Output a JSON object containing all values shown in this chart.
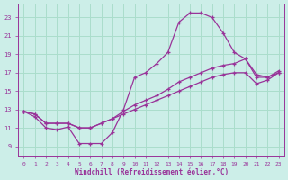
{
  "bg_color": "#cceee8",
  "grid_color": "#aaddcc",
  "line_color": "#993399",
  "xlabel": "Windchill (Refroidissement éolien,°C)",
  "xlabel_color": "#993399",
  "tick_color": "#993399",
  "xlim_min": -0.5,
  "xlim_max": 23.5,
  "ylim_min": 8.0,
  "ylim_max": 24.5,
  "yticks": [
    9,
    11,
    13,
    15,
    17,
    19,
    21,
    23
  ],
  "xticks": [
    0,
    1,
    2,
    3,
    4,
    5,
    6,
    7,
    8,
    9,
    10,
    11,
    12,
    13,
    14,
    15,
    16,
    17,
    18,
    19,
    20,
    21,
    22,
    23
  ],
  "line1_x": [
    0,
    1,
    2,
    3,
    4,
    5,
    6,
    7,
    8,
    9,
    10,
    11,
    12,
    13,
    14,
    15,
    16,
    17,
    18,
    19,
    20,
    21,
    22,
    23
  ],
  "line1_y": [
    12.8,
    12.2,
    11.0,
    10.8,
    11.1,
    9.3,
    9.3,
    9.3,
    10.5,
    13.0,
    16.5,
    17.0,
    18.0,
    19.2,
    22.5,
    23.5,
    23.5,
    23.0,
    21.3,
    19.2,
    18.5,
    16.8,
    16.5,
    17.0
  ],
  "line2_x": [
    0,
    1,
    2,
    3,
    4,
    5,
    6,
    7,
    8,
    9,
    10,
    11,
    12,
    13,
    14,
    15,
    16,
    17,
    18,
    19,
    20,
    21,
    22,
    23
  ],
  "line2_y": [
    12.8,
    12.5,
    11.5,
    11.5,
    11.5,
    11.0,
    11.0,
    11.5,
    12.0,
    12.8,
    13.5,
    14.0,
    14.5,
    15.2,
    16.0,
    16.5,
    17.0,
    17.5,
    17.8,
    18.0,
    18.5,
    16.5,
    16.5,
    17.2
  ],
  "line3_x": [
    0,
    1,
    2,
    3,
    4,
    5,
    6,
    7,
    8,
    9,
    10,
    11,
    12,
    13,
    14,
    15,
    16,
    17,
    18,
    19,
    20,
    21,
    22,
    23
  ],
  "line3_y": [
    12.8,
    12.5,
    11.5,
    11.5,
    11.5,
    11.0,
    11.0,
    11.5,
    12.0,
    12.5,
    13.0,
    13.5,
    14.0,
    14.5,
    15.0,
    15.5,
    16.0,
    16.5,
    16.8,
    17.0,
    17.0,
    15.8,
    16.2,
    17.0
  ]
}
